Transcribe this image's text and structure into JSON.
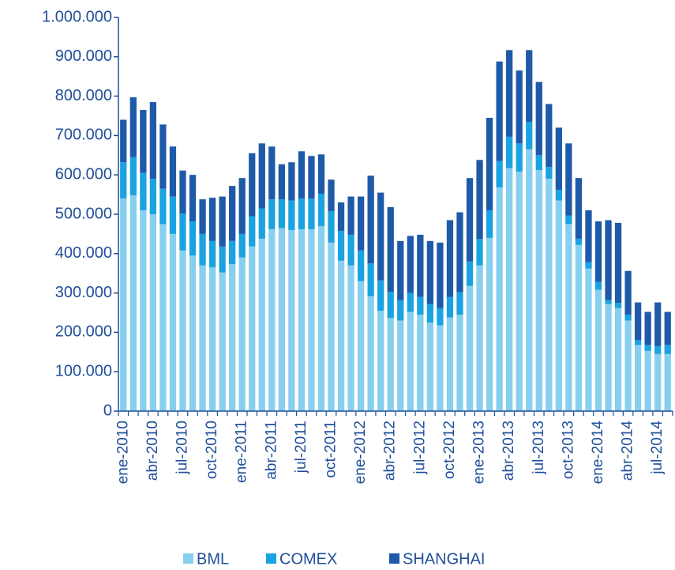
{
  "chart_data": {
    "type": "stacked_bar",
    "categories": [
      "ene-2010",
      null,
      null,
      "abr-2010",
      null,
      null,
      "jul-2010",
      null,
      null,
      "oct-2010",
      null,
      null,
      "ene-2011",
      null,
      null,
      "abr-2011",
      null,
      null,
      "jul-2011",
      null,
      null,
      "oct-2011",
      null,
      null,
      "ene-2012",
      null,
      null,
      "abr-2012",
      null,
      null,
      "jul-2012",
      null,
      null,
      "oct-2012",
      null,
      null,
      "ene-2013",
      null,
      null,
      "abr-2013",
      null,
      null,
      "jul-2013",
      null,
      null,
      "oct-2013",
      null,
      null,
      "ene-2014",
      null,
      null,
      "abr-2014",
      null,
      null,
      "jul-2014",
      null
    ],
    "series": [
      {
        "name": "BML",
        "color": "#87cfef",
        "values": [
          540000,
          548000,
          510000,
          500000,
          475000,
          450000,
          408000,
          395000,
          370000,
          365000,
          352000,
          373000,
          390000,
          418000,
          438000,
          462000,
          465000,
          460000,
          462000,
          462000,
          470000,
          428000,
          382000,
          370000,
          330000,
          292000,
          255000,
          237000,
          230000,
          252000,
          245000,
          225000,
          218000,
          238000,
          245000,
          318000,
          370000,
          440000,
          568000,
          617000,
          608000,
          665000,
          612000,
          590000,
          535000,
          475000,
          422000,
          362000,
          308000,
          272000,
          262000,
          230000,
          168000,
          153000,
          145000,
          145000
        ]
      },
      {
        "name": "COMEX",
        "color": "#1aa3e0",
        "values": [
          92000,
          97000,
          95000,
          90000,
          90000,
          95000,
          94000,
          87000,
          80000,
          67000,
          66000,
          59000,
          60000,
          77000,
          77000,
          76000,
          73000,
          75000,
          78000,
          78000,
          82000,
          80000,
          76000,
          78000,
          78000,
          83000,
          77000,
          66000,
          52000,
          48000,
          45000,
          47000,
          44000,
          52000,
          57000,
          62000,
          67000,
          70000,
          67000,
          80000,
          72000,
          70000,
          38000,
          30000,
          27000,
          22000,
          16000,
          16000,
          20000,
          10000,
          13000,
          15000,
          12000,
          15000,
          20000,
          23000
        ]
      },
      {
        "name": "SHANGHAI",
        "color": "#1f5aa8",
        "values": [
          108000,
          152000,
          160000,
          195000,
          163000,
          127000,
          109000,
          118000,
          88000,
          110000,
          127000,
          140000,
          142000,
          160000,
          165000,
          134000,
          89000,
          97000,
          120000,
          108000,
          100000,
          80000,
          72000,
          97000,
          137000,
          223000,
          223000,
          215000,
          150000,
          145000,
          158000,
          160000,
          166000,
          195000,
          203000,
          212000,
          201000,
          235000,
          253000,
          220000,
          185000,
          182000,
          186000,
          160000,
          158000,
          183000,
          154000,
          132000,
          154000,
          203000,
          203000,
          111000,
          96000,
          84000,
          111000,
          84000
        ]
      }
    ],
    "ylim": [
      0,
      1000000
    ],
    "yticks": [
      0,
      {
        "value": 100000,
        "label": "100.000"
      },
      {
        "value": 200000,
        "label": "200.000"
      },
      {
        "value": 300000,
        "label": "300.000"
      },
      {
        "value": 400000,
        "label": "400.000"
      },
      {
        "value": 500000,
        "label": "500.000"
      },
      {
        "value": 600000,
        "label": "600.000"
      },
      {
        "value": 700000,
        "label": "700.000"
      },
      {
        "value": 800000,
        "label": "800.000"
      },
      {
        "value": 900000,
        "label": "900.000"
      },
      {
        "value": 1000000,
        "label": "1.000.000"
      }
    ],
    "legend": "bottom"
  }
}
